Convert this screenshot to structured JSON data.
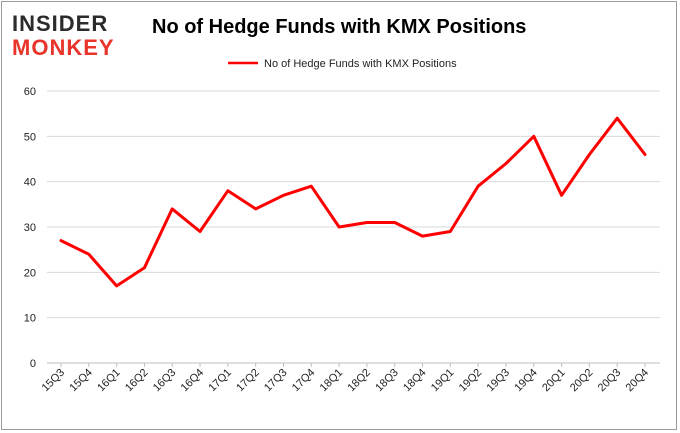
{
  "brand": {
    "line1": "INSIDER",
    "line2": "MONKEY"
  },
  "chart_data": {
    "type": "line",
    "title": "No of Hedge Funds with KMX Positions",
    "xlabel": "",
    "ylabel": "",
    "categories": [
      "15Q3",
      "15Q4",
      "16Q1",
      "16Q2",
      "16Q3",
      "16Q4",
      "17Q1",
      "17Q2",
      "17Q3",
      "17Q4",
      "18Q1",
      "18Q2",
      "18Q3",
      "18Q4",
      "19Q1",
      "19Q2",
      "19Q3",
      "19Q4",
      "20Q1",
      "20Q2",
      "20Q3",
      "20Q4"
    ],
    "series": [
      {
        "name": "No of Hedge Funds with KMX Positions",
        "color": "#ff0000",
        "values": [
          27,
          24,
          17,
          21,
          34,
          29,
          38,
          34,
          37,
          39,
          30,
          31,
          31,
          28,
          29,
          39,
          44,
          50,
          37,
          46,
          54,
          46
        ]
      }
    ],
    "ylim": [
      0,
      60
    ],
    "yticks": [
      0,
      10,
      20,
      30,
      40,
      50,
      60
    ],
    "grid": true,
    "legend": "top-center"
  }
}
